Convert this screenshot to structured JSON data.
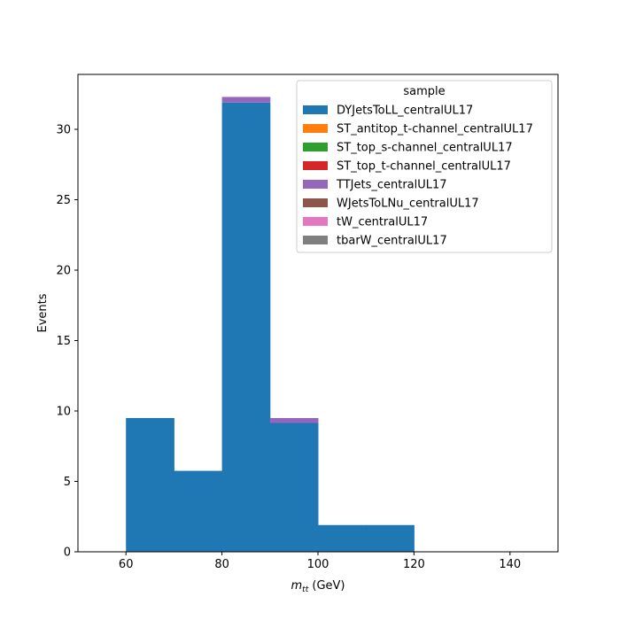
{
  "chart_data": {
    "type": "bar",
    "stacked": true,
    "histogram": true,
    "xlabel_main": "m",
    "xlabel_sub": "tt",
    "xlabel_unit": " (GeV)",
    "ylabel": "Events",
    "xlim": [
      50,
      150
    ],
    "ylim": [
      0,
      33.9
    ],
    "xticks": [
      60,
      80,
      100,
      120,
      140
    ],
    "yticks": [
      0,
      5,
      10,
      15,
      20,
      25,
      30
    ],
    "bin_edges": [
      60,
      70,
      80,
      90,
      100,
      110,
      120
    ],
    "legend": {
      "title": "sample",
      "placement": "top-right"
    },
    "series": [
      {
        "name": "DYJetsToLL_centralUL17",
        "color": "#1f77b4",
        "values": [
          9.5,
          5.75,
          31.9,
          9.15,
          1.9,
          1.9
        ]
      },
      {
        "name": "ST_antitop_t-channel_centralUL17",
        "color": "#ff7f0e",
        "values": [
          0,
          0,
          0,
          0,
          0,
          0
        ]
      },
      {
        "name": "ST_top_s-channel_centralUL17",
        "color": "#2ca02c",
        "values": [
          0,
          0,
          0,
          0,
          0,
          0
        ]
      },
      {
        "name": "ST_top_t-channel_centralUL17",
        "color": "#d62728",
        "values": [
          0,
          0,
          0,
          0,
          0,
          0
        ]
      },
      {
        "name": "TTJets_centralUL17",
        "color": "#9467bd",
        "values": [
          0,
          0,
          0.4,
          0.35,
          0,
          0
        ]
      },
      {
        "name": "WJetsToLNu_centralUL17",
        "color": "#8c564b",
        "values": [
          0,
          0,
          0,
          0,
          0,
          0
        ]
      },
      {
        "name": "tW_centralUL17",
        "color": "#e377c2",
        "values": [
          0,
          0,
          0,
          0,
          0,
          0
        ]
      },
      {
        "name": "tbarW_centralUL17",
        "color": "#7f7f7f",
        "values": [
          0,
          0,
          0,
          0,
          0,
          0
        ]
      }
    ]
  }
}
